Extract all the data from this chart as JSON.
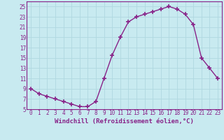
{
  "x": [
    0,
    1,
    2,
    3,
    4,
    5,
    6,
    7,
    8,
    9,
    10,
    11,
    12,
    13,
    14,
    15,
    16,
    17,
    18,
    19,
    20,
    21,
    22,
    23
  ],
  "y": [
    9,
    8,
    7.5,
    7,
    6.5,
    6,
    5.5,
    5.5,
    6.5,
    11,
    15.5,
    19,
    22,
    23,
    23.5,
    24,
    24.5,
    25,
    24.5,
    23.5,
    21.5,
    15,
    13,
    11
  ],
  "line_color": "#882288",
  "marker": "+",
  "marker_size": 4,
  "marker_lw": 1.2,
  "bg_color": "#c8eaf0",
  "grid_color": "#b0d8e0",
  "xlabel": "Windchill (Refroidissement éolien,°C)",
  "xlabel_fontsize": 6.5,
  "ylim": [
    5,
    26
  ],
  "xlim": [
    -0.5,
    23.5
  ],
  "yticks": [
    5,
    7,
    9,
    11,
    13,
    15,
    17,
    19,
    21,
    23,
    25
  ],
  "xticks": [
    0,
    1,
    2,
    3,
    4,
    5,
    6,
    7,
    8,
    9,
    10,
    11,
    12,
    13,
    14,
    15,
    16,
    17,
    18,
    19,
    20,
    21,
    22,
    23
  ],
  "tick_fontsize": 5.5,
  "tick_color": "#882288",
  "spine_color": "#882288",
  "line_width": 1.0
}
